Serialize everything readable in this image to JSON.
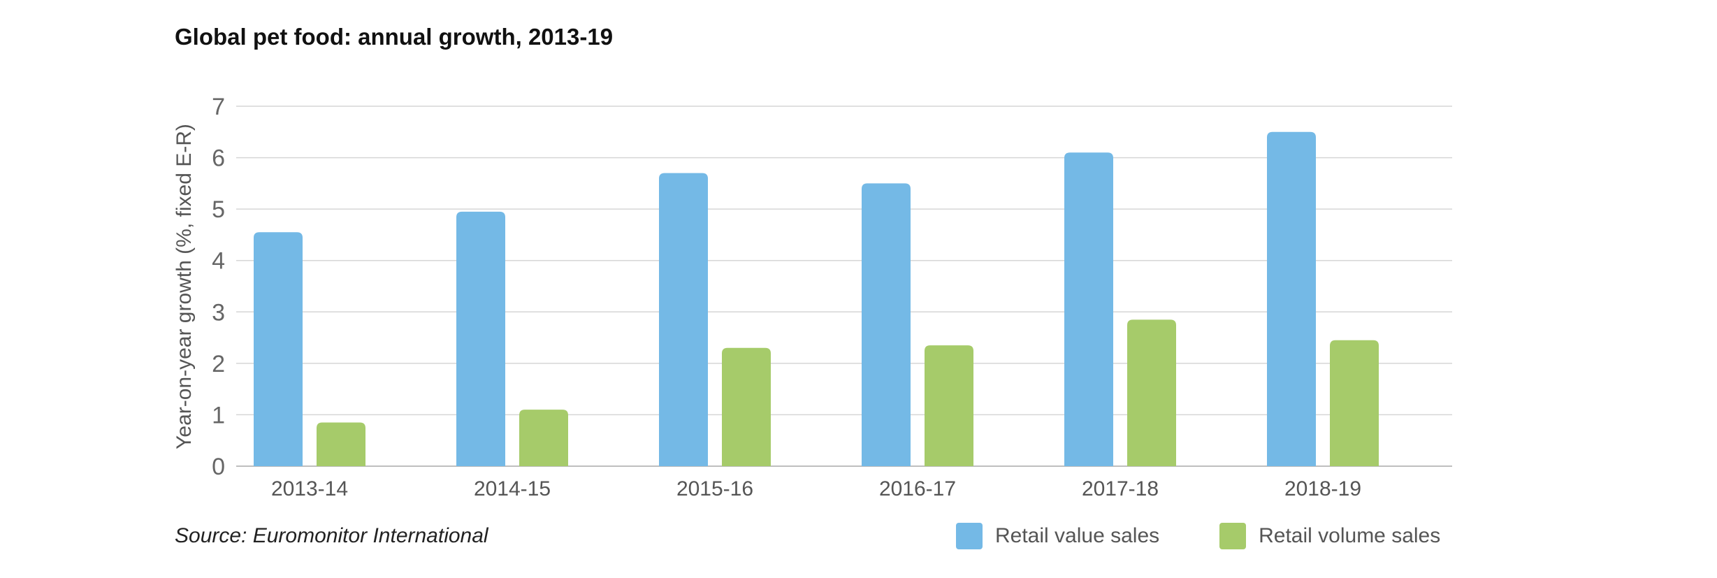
{
  "title": "Global pet food: annual growth, 2013-19",
  "source": "Source: Euromonitor International",
  "chart_data": {
    "type": "bar",
    "title": "Global pet food: annual growth, 2013-19",
    "xlabel": "",
    "ylabel": "Year-on-year growth (%, fixed E-R)",
    "ylim": [
      0,
      7
    ],
    "yticks": [
      "0",
      "1",
      "2",
      "3",
      "4",
      "5",
      "6",
      "7"
    ],
    "grid": true,
    "legend_position": "bottom-right",
    "categories": [
      "2013-14",
      "2014-15",
      "2015-16",
      "2016-17",
      "2017-18",
      "2018-19"
    ],
    "series": [
      {
        "name": "Retail value sales",
        "color": "#74b9e6",
        "values": [
          4.55,
          4.95,
          5.7,
          5.5,
          6.1,
          6.5
        ]
      },
      {
        "name": "Retail volume sales",
        "color": "#a6cb6a",
        "values": [
          0.85,
          1.1,
          2.3,
          2.35,
          2.85,
          2.45
        ]
      }
    ]
  }
}
